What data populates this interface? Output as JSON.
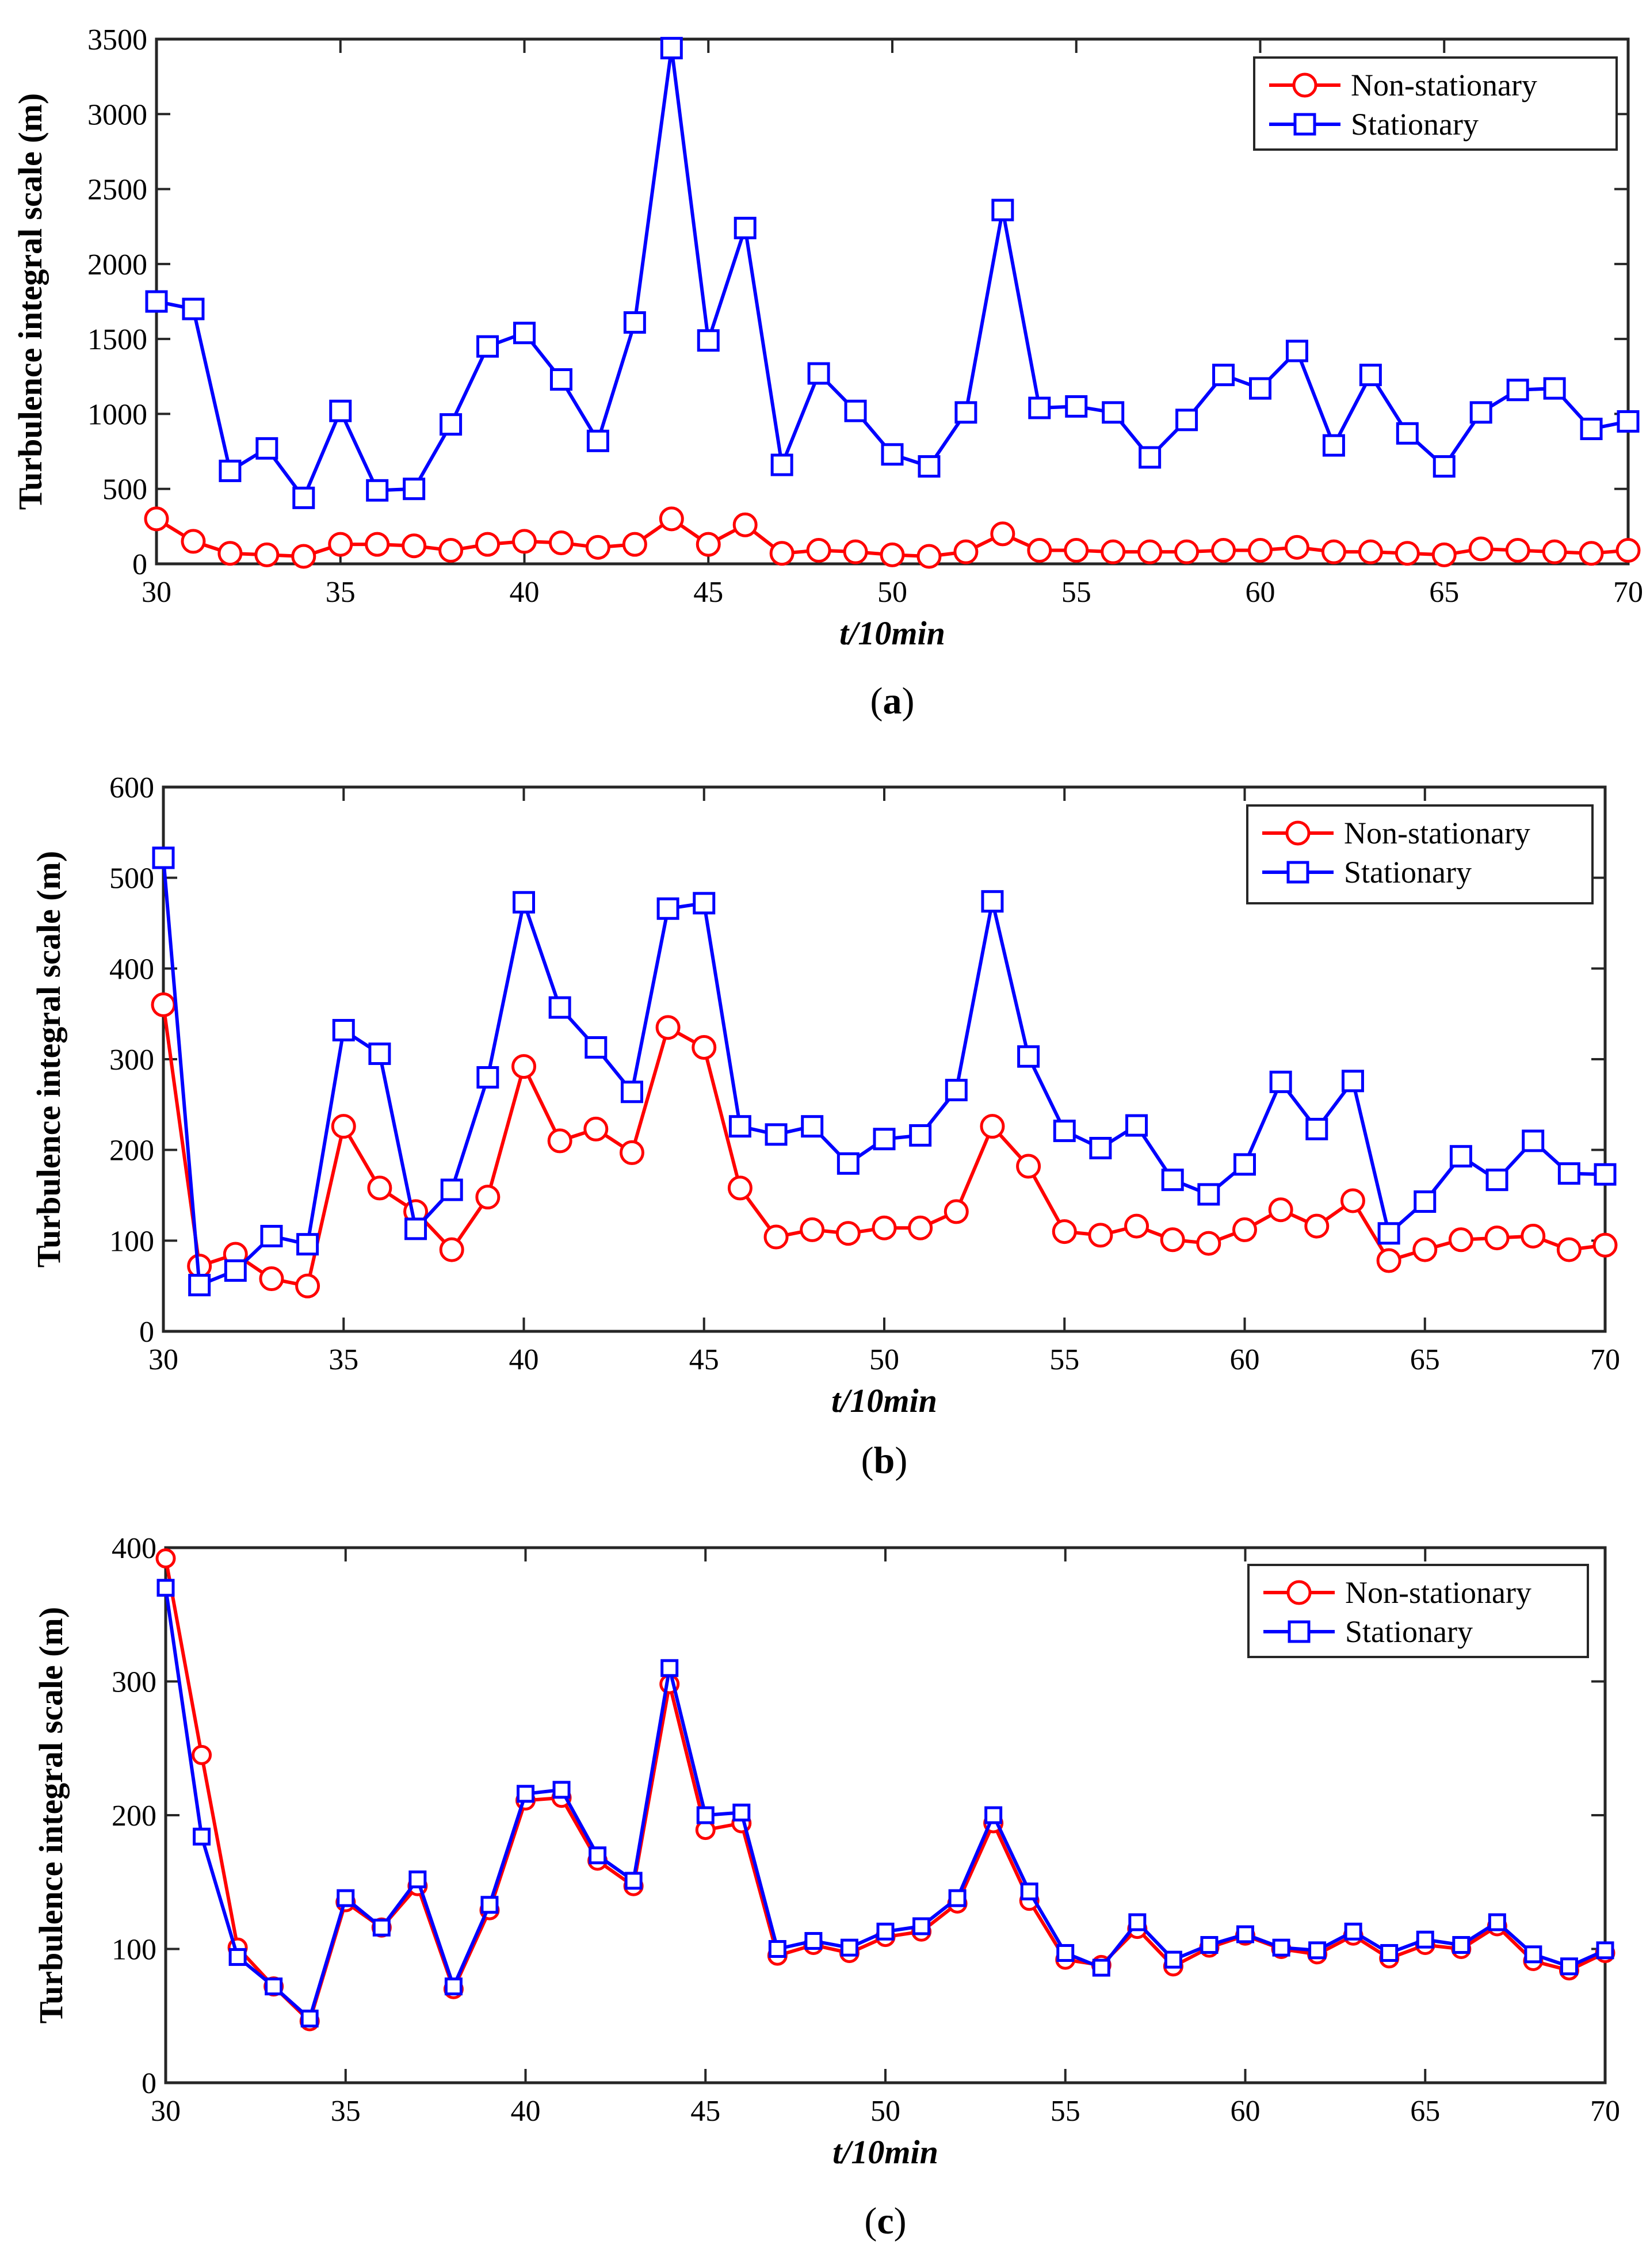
{
  "chart_data": [
    {
      "type": "line",
      "panel_label": "a",
      "title": "",
      "xlabel": "t/10min",
      "ylabel": "Turbulence integral scale (m)",
      "xlim": [
        30,
        70
      ],
      "ylim": [
        0,
        3500
      ],
      "xticks": [
        30,
        35,
        40,
        45,
        50,
        55,
        60,
        65,
        70
      ],
      "yticks": [
        0,
        500,
        1000,
        1500,
        2000,
        2500,
        3000,
        3500
      ],
      "grid": false,
      "legend_position": "top-right",
      "x": [
        30,
        31,
        32,
        33,
        34,
        35,
        36,
        37,
        38,
        39,
        40,
        41,
        42,
        43,
        44,
        45,
        46,
        47,
        48,
        49,
        50,
        51,
        52,
        53,
        54,
        55,
        56,
        57,
        58,
        59,
        60,
        61,
        62,
        63,
        64,
        65,
        66,
        67,
        68,
        69,
        70
      ],
      "series": [
        {
          "name": "Non-stationary",
          "color": "#ff0000",
          "marker": "circle",
          "values": [
            300,
            150,
            70,
            60,
            50,
            130,
            130,
            120,
            90,
            130,
            150,
            140,
            110,
            130,
            300,
            130,
            260,
            70,
            90,
            80,
            60,
            50,
            80,
            200,
            90,
            90,
            80,
            80,
            80,
            90,
            90,
            110,
            80,
            80,
            70,
            60,
            100,
            90,
            80,
            70,
            90
          ]
        },
        {
          "name": "Stationary",
          "color": "#0000ff",
          "marker": "square",
          "values": [
            1750,
            1700,
            620,
            770,
            440,
            1020,
            490,
            500,
            930,
            1450,
            1540,
            1230,
            820,
            1610,
            3440,
            1490,
            2240,
            660,
            1270,
            1020,
            730,
            650,
            1010,
            2360,
            1040,
            1050,
            1010,
            710,
            960,
            1260,
            1170,
            1420,
            790,
            1260,
            870,
            650,
            1010,
            1160,
            1170,
            900,
            950
          ]
        }
      ]
    },
    {
      "type": "line",
      "panel_label": "b",
      "title": "",
      "xlabel": "t/10min",
      "ylabel": "Turbulence integral scale (m)",
      "xlim": [
        30,
        70
      ],
      "ylim": [
        0,
        600
      ],
      "xticks": [
        30,
        35,
        40,
        45,
        50,
        55,
        60,
        65,
        70
      ],
      "yticks": [
        0,
        100,
        200,
        300,
        400,
        500,
        600
      ],
      "grid": false,
      "legend_position": "top-right",
      "x": [
        30,
        31,
        32,
        33,
        34,
        35,
        36,
        37,
        38,
        39,
        40,
        41,
        42,
        43,
        44,
        45,
        46,
        47,
        48,
        49,
        50,
        51,
        52,
        53,
        54,
        55,
        56,
        57,
        58,
        59,
        60,
        61,
        62,
        63,
        64,
        65,
        66,
        67,
        68,
        69,
        70
      ],
      "series": [
        {
          "name": "Non-stationary",
          "color": "#ff0000",
          "marker": "circle",
          "values": [
            360,
            72,
            85,
            58,
            50,
            226,
            158,
            132,
            90,
            148,
            292,
            210,
            223,
            197,
            335,
            313,
            158,
            104,
            112,
            108,
            114,
            114,
            132,
            226,
            182,
            110,
            106,
            116,
            101,
            97,
            112,
            134,
            116,
            144,
            78,
            90,
            101,
            103,
            105,
            90,
            95
          ]
        },
        {
          "name": "Stationary",
          "color": "#0000ff",
          "marker": "square",
          "values": [
            522,
            51,
            67,
            105,
            96,
            332,
            306,
            113,
            156,
            280,
            473,
            357,
            313,
            264,
            466,
            472,
            226,
            217,
            226,
            185,
            212,
            216,
            266,
            474,
            303,
            221,
            202,
            227,
            167,
            151,
            184,
            275,
            223,
            276,
            108,
            143,
            193,
            167,
            210,
            174,
            173
          ]
        }
      ]
    },
    {
      "type": "line",
      "panel_label": "c",
      "title": "",
      "xlabel": "t/10min",
      "ylabel": "Turbulence integral scale (m)",
      "xlim": [
        30,
        70
      ],
      "ylim": [
        0,
        400
      ],
      "xticks": [
        30,
        35,
        40,
        45,
        50,
        55,
        60,
        65,
        70
      ],
      "yticks": [
        0,
        100,
        200,
        300,
        400
      ],
      "grid": false,
      "legend_position": "top-right",
      "x": [
        30,
        31,
        32,
        33,
        34,
        35,
        36,
        37,
        38,
        39,
        40,
        41,
        42,
        43,
        44,
        45,
        46,
        47,
        48,
        49,
        50,
        51,
        52,
        53,
        54,
        55,
        56,
        57,
        58,
        59,
        60,
        61,
        62,
        63,
        64,
        65,
        66,
        67,
        68,
        69,
        70
      ],
      "series": [
        {
          "name": "Non-stationary",
          "color": "#ff0000",
          "marker": "circle",
          "values": [
            392,
            245,
            101,
            72,
            46,
            135,
            116,
            147,
            70,
            129,
            211,
            213,
            166,
            147,
            298,
            189,
            194,
            95,
            103,
            97,
            109,
            113,
            134,
            194,
            136,
            92,
            88,
            115,
            87,
            101,
            110,
            100,
            96,
            110,
            93,
            103,
            100,
            117,
            91,
            84,
            97
          ]
        },
        {
          "name": "Stationary",
          "color": "#0000ff",
          "marker": "square",
          "values": [
            370,
            184,
            94,
            72,
            48,
            138,
            116,
            152,
            72,
            133,
            216,
            219,
            170,
            151,
            310,
            200,
            202,
            100,
            106,
            101,
            113,
            117,
            138,
            200,
            143,
            97,
            86,
            120,
            92,
            103,
            111,
            101,
            99,
            113,
            97,
            107,
            103,
            120,
            96,
            87,
            99
          ]
        }
      ]
    }
  ]
}
